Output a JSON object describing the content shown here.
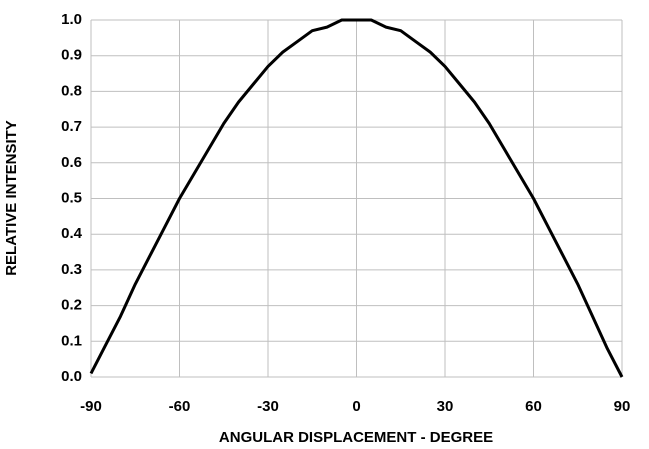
{
  "chart_data": {
    "type": "line",
    "xlabel": "ANGULAR DISPLACEMENT - DEGREE",
    "ylabel": "RELATIVE INTENSITY",
    "x": [
      -90,
      -85,
      -80,
      -75,
      -70,
      -65,
      -60,
      -55,
      -50,
      -45,
      -40,
      -35,
      -30,
      -25,
      -20,
      -15,
      -10,
      -5,
      0,
      5,
      10,
      15,
      20,
      25,
      30,
      35,
      40,
      45,
      50,
      55,
      60,
      65,
      70,
      75,
      80,
      85,
      90
    ],
    "series": [
      {
        "name": "Relative intensity",
        "color": "#000000",
        "values": [
          0.01,
          0.09,
          0.17,
          0.26,
          0.34,
          0.42,
          0.5,
          0.57,
          0.64,
          0.71,
          0.77,
          0.82,
          0.87,
          0.91,
          0.94,
          0.97,
          0.98,
          1.0,
          1.0,
          1.0,
          0.98,
          0.97,
          0.94,
          0.91,
          0.87,
          0.82,
          0.77,
          0.71,
          0.64,
          0.57,
          0.5,
          0.42,
          0.34,
          0.26,
          0.17,
          0.08,
          0.0
        ]
      }
    ],
    "xlim": [
      -90,
      90
    ],
    "xticks": [
      -90,
      -60,
      -30,
      0,
      30,
      60,
      90
    ],
    "ylim": [
      0,
      1
    ],
    "yticks": [
      {
        "value": 0,
        "label": "0.0"
      },
      0.1,
      0.2,
      0.3,
      0.4,
      0.5,
      0.6,
      0.7,
      0.8,
      0.9,
      {
        "value": 1,
        "label": "1.0"
      }
    ],
    "grid": true
  }
}
